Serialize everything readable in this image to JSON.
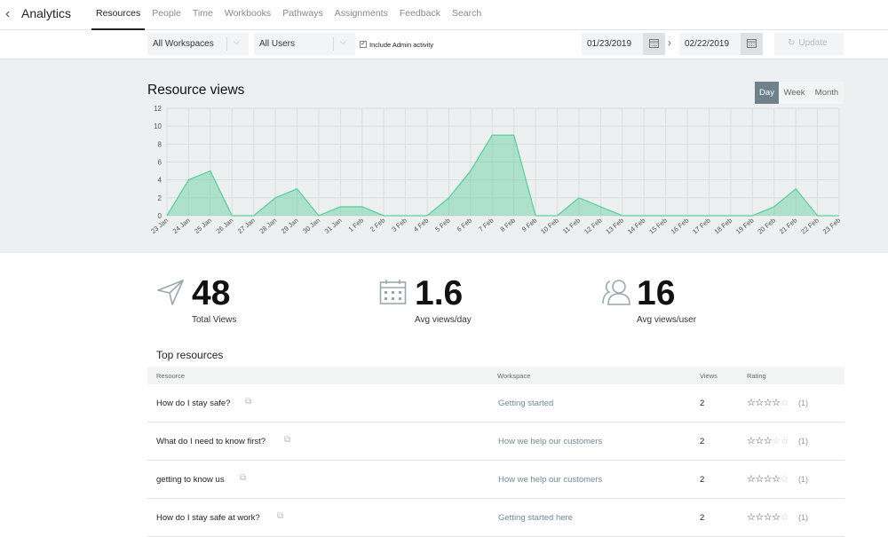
{
  "app": {
    "title": "Analytics",
    "back_icon": "chevron-left-icon"
  },
  "tabs": [
    "Resources",
    "People",
    "Time",
    "Workbooks",
    "Pathways",
    "Assignments",
    "Feedback",
    "Search"
  ],
  "active_tab": "Resources",
  "filters": {
    "workspace": "All Workspaces",
    "users": "All Users",
    "admin_label": "Include Admin activity",
    "admin_checked": true,
    "start_date": "01/23/2019",
    "end_date": "02/22/2019",
    "update_label": "Update"
  },
  "chart_section": {
    "title": "Resource views",
    "granularity": [
      "Day",
      "Week",
      "Month"
    ],
    "selected": "Day"
  },
  "chart_data": {
    "type": "area",
    "x": [
      "23 Jan",
      "24 Jan",
      "25 Jan",
      "26 Jan",
      "27 Jan",
      "28 Jan",
      "29 Jan",
      "30 Jan",
      "31 Jan",
      "1 Feb",
      "2 Feb",
      "3 Feb",
      "4 Feb",
      "5 Feb",
      "6 Feb",
      "7 Feb",
      "8 Feb",
      "9 Feb",
      "10 Feb",
      "11 Feb",
      "12 Feb",
      "13 Feb",
      "14 Feb",
      "15 Feb",
      "16 Feb",
      "17 Feb",
      "18 Feb",
      "19 Feb",
      "20 Feb",
      "21 Feb",
      "22 Feb",
      "23 Feb"
    ],
    "values": [
      0,
      4,
      5,
      0,
      0,
      2,
      3,
      0,
      1,
      1,
      0,
      0,
      0,
      2,
      5,
      9,
      9,
      0,
      0,
      2,
      1,
      0,
      0,
      0,
      0,
      0,
      0,
      0,
      1,
      3,
      0,
      0
    ],
    "yticks": [
      0,
      2,
      4,
      6,
      8,
      10,
      12
    ],
    "ylim": [
      0,
      12
    ],
    "grid": true,
    "color": "#5fcf9f"
  },
  "stats": [
    {
      "value": "48",
      "label": "Total Views",
      "icon": "send-icon"
    },
    {
      "value": "1.6",
      "label": "Avg views/day",
      "icon": "calendar-icon"
    },
    {
      "value": "16",
      "label": "Avg views/user",
      "icon": "users-icon"
    }
  ],
  "top_resources": {
    "title": "Top resources",
    "columns": [
      "Resource",
      "Workspace",
      "Views",
      "Rating"
    ],
    "rows": [
      {
        "resource": "How do I stay safe?",
        "workspace": "Getting started",
        "views": "2",
        "rating": 4,
        "count": "(1)"
      },
      {
        "resource": "What do I need to know first?",
        "workspace": "How we help our customers",
        "views": "2",
        "rating": 3,
        "count": "(1)"
      },
      {
        "resource": "getting to know us",
        "workspace": "How we help our customers",
        "views": "2",
        "rating": 4,
        "count": "(1)"
      },
      {
        "resource": "How do I stay safe at work?",
        "workspace": "Getting started here",
        "views": "2",
        "rating": 4,
        "count": "(1)"
      }
    ]
  }
}
